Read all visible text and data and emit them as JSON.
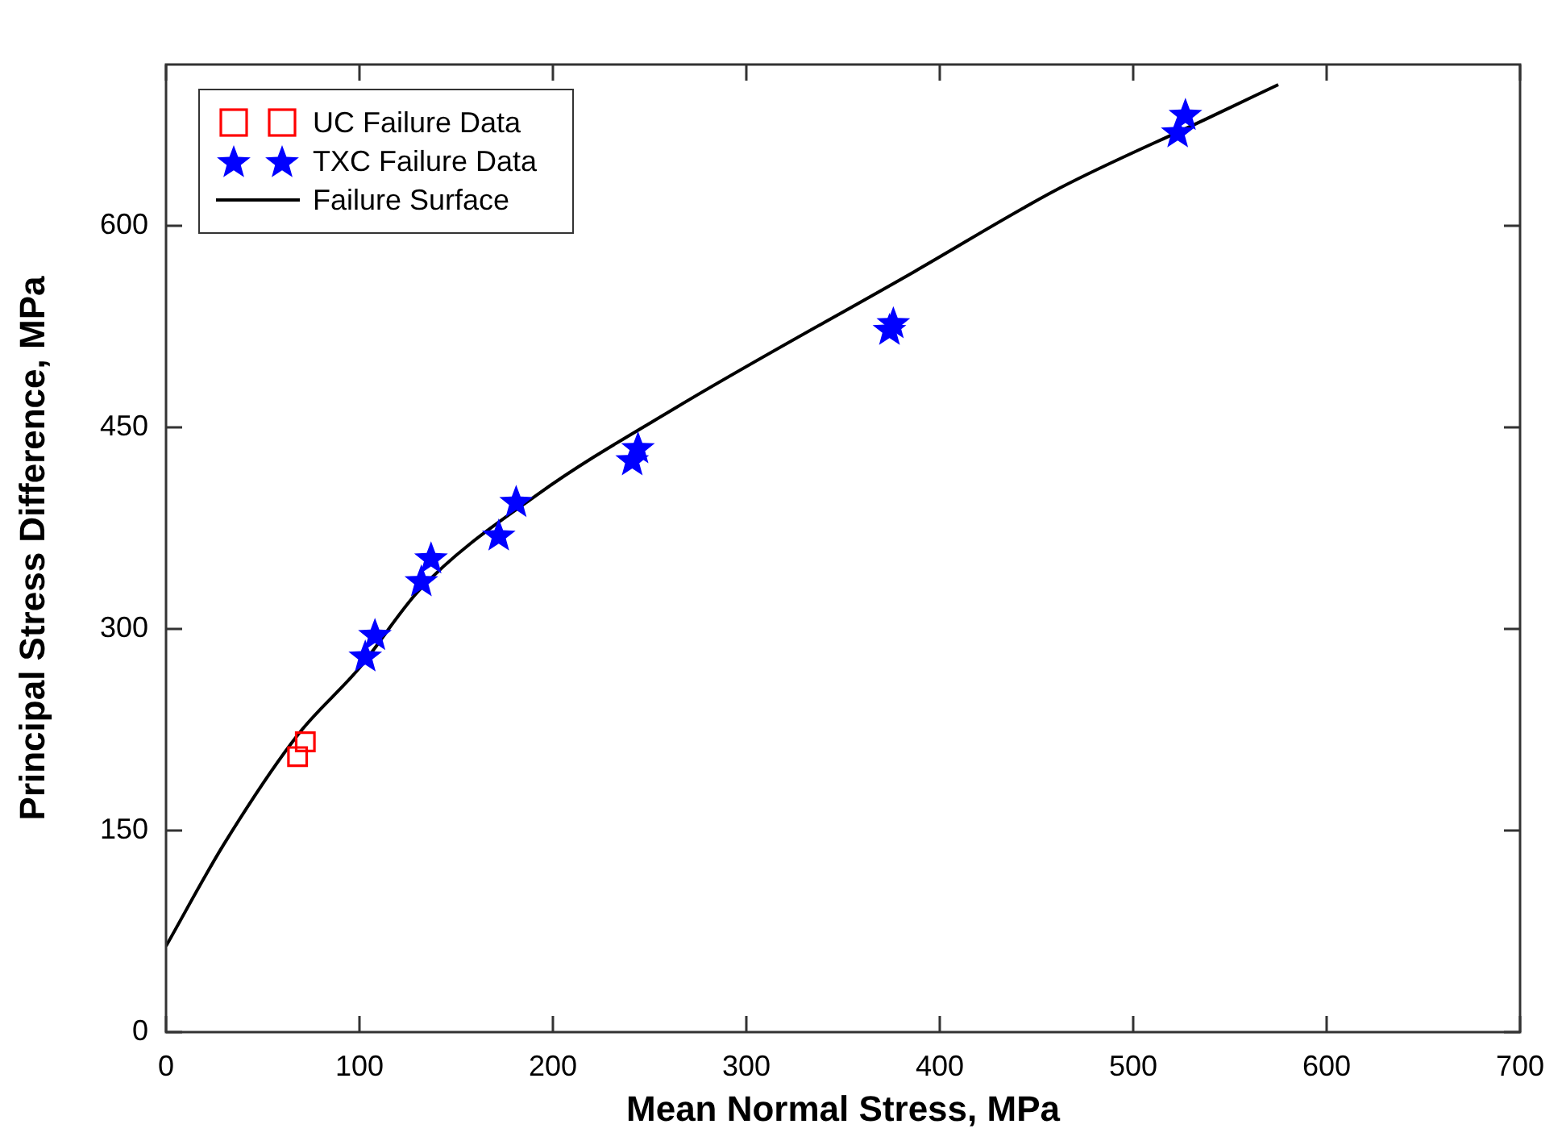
{
  "chart_data": {
    "type": "scatter",
    "xlabel": "Mean Normal Stress, MPa",
    "ylabel": "Principal Stress Difference, MPa",
    "xlim": [
      0,
      700
    ],
    "xticks": [
      0,
      100,
      200,
      300,
      400,
      500,
      600,
      700
    ],
    "ylim": [
      0,
      720
    ],
    "yticks": [
      0,
      150,
      300,
      450,
      600
    ],
    "grid": false,
    "legend": "top left",
    "series": [
      {
        "name": "UC Failure Data",
        "marker": "square",
        "color": "#ff0000",
        "x": [
          68,
          72
        ],
        "values": [
          205,
          216
        ]
      },
      {
        "name": "TXC Failure Data",
        "marker": "star",
        "color": "#0000ff",
        "x": [
          103,
          108,
          132,
          137,
          172,
          181,
          241,
          244,
          374,
          376,
          523,
          527
        ],
        "values": [
          279,
          295,
          335,
          352,
          369,
          394,
          425,
          434,
          522,
          527,
          669,
          682
        ]
      },
      {
        "name": "Failure Surface",
        "type": "line",
        "marker": "none",
        "color": "#000000",
        "x": [
          0,
          30,
          68,
          100,
          131,
          192,
          264,
          387,
          462,
          537,
          575
        ],
        "values": [
          64,
          140,
          221,
          271,
          329,
          400,
          465,
          566,
          628,
          679,
          705
        ]
      }
    ]
  }
}
